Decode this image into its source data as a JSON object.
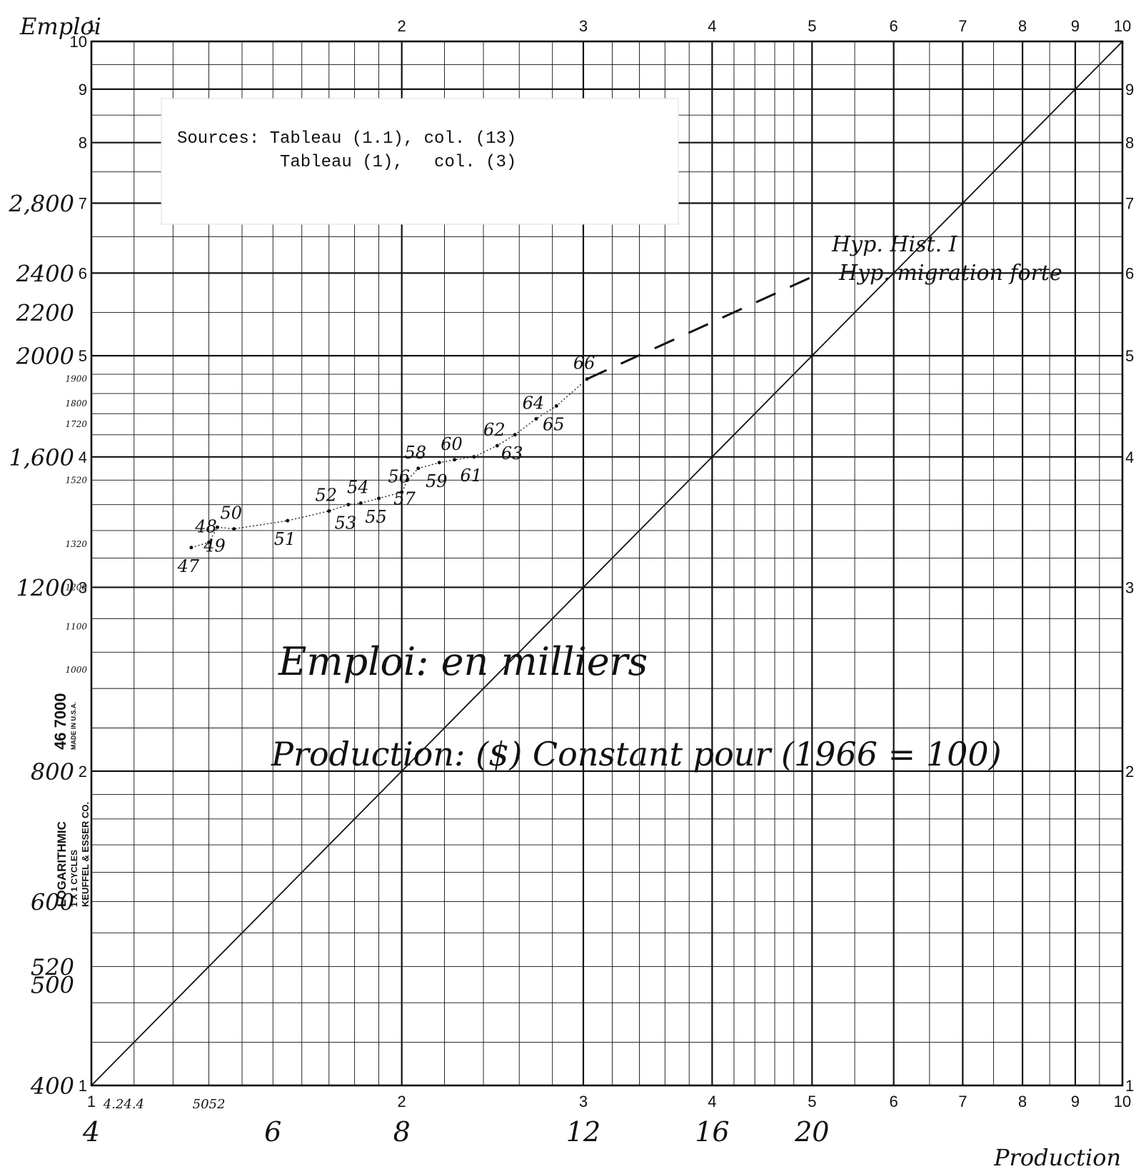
{
  "chart_data": {
    "type": "line",
    "title": "",
    "xlabel": "Production",
    "ylabel": "Emploi",
    "x_scale": "log",
    "y_scale": "log",
    "xlim": [
      4,
      40
    ],
    "ylim": [
      400,
      4000
    ],
    "grid": true,
    "x_cycle_ticks": [
      "1",
      "2",
      "3",
      "4",
      "5",
      "6",
      "7",
      "8",
      "9",
      "10"
    ],
    "y_cycle_ticks": [
      "10",
      "9",
      "8",
      "7",
      "6",
      "5",
      "4",
      "3",
      "2",
      "1"
    ],
    "y_right_ticks": [
      "9",
      "8",
      "7",
      "6",
      "5",
      "4",
      "3",
      "2",
      "1"
    ],
    "x_handwritten_ticks": [
      {
        "value": 4,
        "label": "4"
      },
      {
        "value": 6,
        "label": "6"
      },
      {
        "value": 8,
        "label": "8"
      },
      {
        "value": 12,
        "label": "12"
      },
      {
        "value": 16,
        "label": "16"
      },
      {
        "value": 20,
        "label": "20"
      }
    ],
    "x_small_notes": [
      "4.24.4",
      "5052"
    ],
    "y_handwritten_ticks": [
      {
        "value": 2800,
        "label": "2,800"
      },
      {
        "value": 2400,
        "label": "2400"
      },
      {
        "value": 2200,
        "label": "2200"
      },
      {
        "value": 2000,
        "label": "2000"
      },
      {
        "value": 1600,
        "label": "1,600"
      },
      {
        "value": 1200,
        "label": "1200"
      },
      {
        "value": 800,
        "label": "800"
      },
      {
        "value": 600,
        "label": "600"
      },
      {
        "value": 520,
        "label": "520"
      },
      {
        "value": 500,
        "label": "500"
      },
      {
        "value": 400,
        "label": "400"
      }
    ],
    "y_small_ticks": [
      "1900",
      "1800",
      "1720",
      "1520",
      "1320",
      "1200",
      "1100",
      "1000"
    ],
    "series": [
      {
        "name": "",
        "style": "observed",
        "points": [
          {
            "label": "47",
            "x": 5.0,
            "y": 1310
          },
          {
            "label": "48",
            "x": 5.2,
            "y": 1325
          },
          {
            "label": "49",
            "x": 5.3,
            "y": 1370
          },
          {
            "label": "50",
            "x": 5.5,
            "y": 1365
          },
          {
            "label": "51",
            "x": 6.2,
            "y": 1390
          },
          {
            "label": "52",
            "x": 6.8,
            "y": 1420
          },
          {
            "label": "53",
            "x": 7.1,
            "y": 1440
          },
          {
            "label": "54",
            "x": 7.3,
            "y": 1445
          },
          {
            "label": "55",
            "x": 7.6,
            "y": 1460
          },
          {
            "label": "56",
            "x": 8.0,
            "y": 1480
          },
          {
            "label": "57",
            "x": 8.1,
            "y": 1520
          },
          {
            "label": "58",
            "x": 8.3,
            "y": 1560
          },
          {
            "label": "59",
            "x": 8.7,
            "y": 1580
          },
          {
            "label": "60",
            "x": 9.0,
            "y": 1590
          },
          {
            "label": "61",
            "x": 9.4,
            "y": 1600
          },
          {
            "label": "62",
            "x": 9.9,
            "y": 1640
          },
          {
            "label": "63",
            "x": 10.3,
            "y": 1680
          },
          {
            "label": "64",
            "x": 10.8,
            "y": 1740
          },
          {
            "label": "65",
            "x": 11.3,
            "y": 1790
          },
          {
            "label": "66",
            "x": 12.1,
            "y": 1900
          }
        ]
      },
      {
        "name": "Hyp. Hist. I",
        "style": "dashed",
        "points": [
          {
            "x": 12.1,
            "y": 1900
          },
          {
            "x": 20.0,
            "y": 2380
          }
        ]
      },
      {
        "name": "Hyp. migration forte",
        "style": "dotted",
        "points": [
          {
            "x": 8.0,
            "y": 800
          },
          {
            "x": 24.0,
            "y": 2400
          }
        ]
      },
      {
        "name": "",
        "style": "solid",
        "points": [
          {
            "x": 4.0,
            "y": 400
          },
          {
            "x": 40.0,
            "y": 4000
          }
        ]
      }
    ],
    "annotations": {
      "sources_line1": "Sources: Tableau (1.1), col. (13)",
      "sources_line2": "Tableau (1),   col. (3)",
      "note_emploi": "Emploi: en milliers",
      "note_production": "Production: ($) Constant pour (1966 = 100)",
      "label_hyp1": "Hyp. Hist. I",
      "label_hyp2": "Hyp. migration forte"
    },
    "paper_imprint": {
      "line1": "46 7000",
      "line2": "MADE IN U.S.A.",
      "line3": "LOGARITHMIC",
      "line4": "1 X 1 CYCLES",
      "line5": "KEUFFEL & ESSER CO."
    }
  }
}
